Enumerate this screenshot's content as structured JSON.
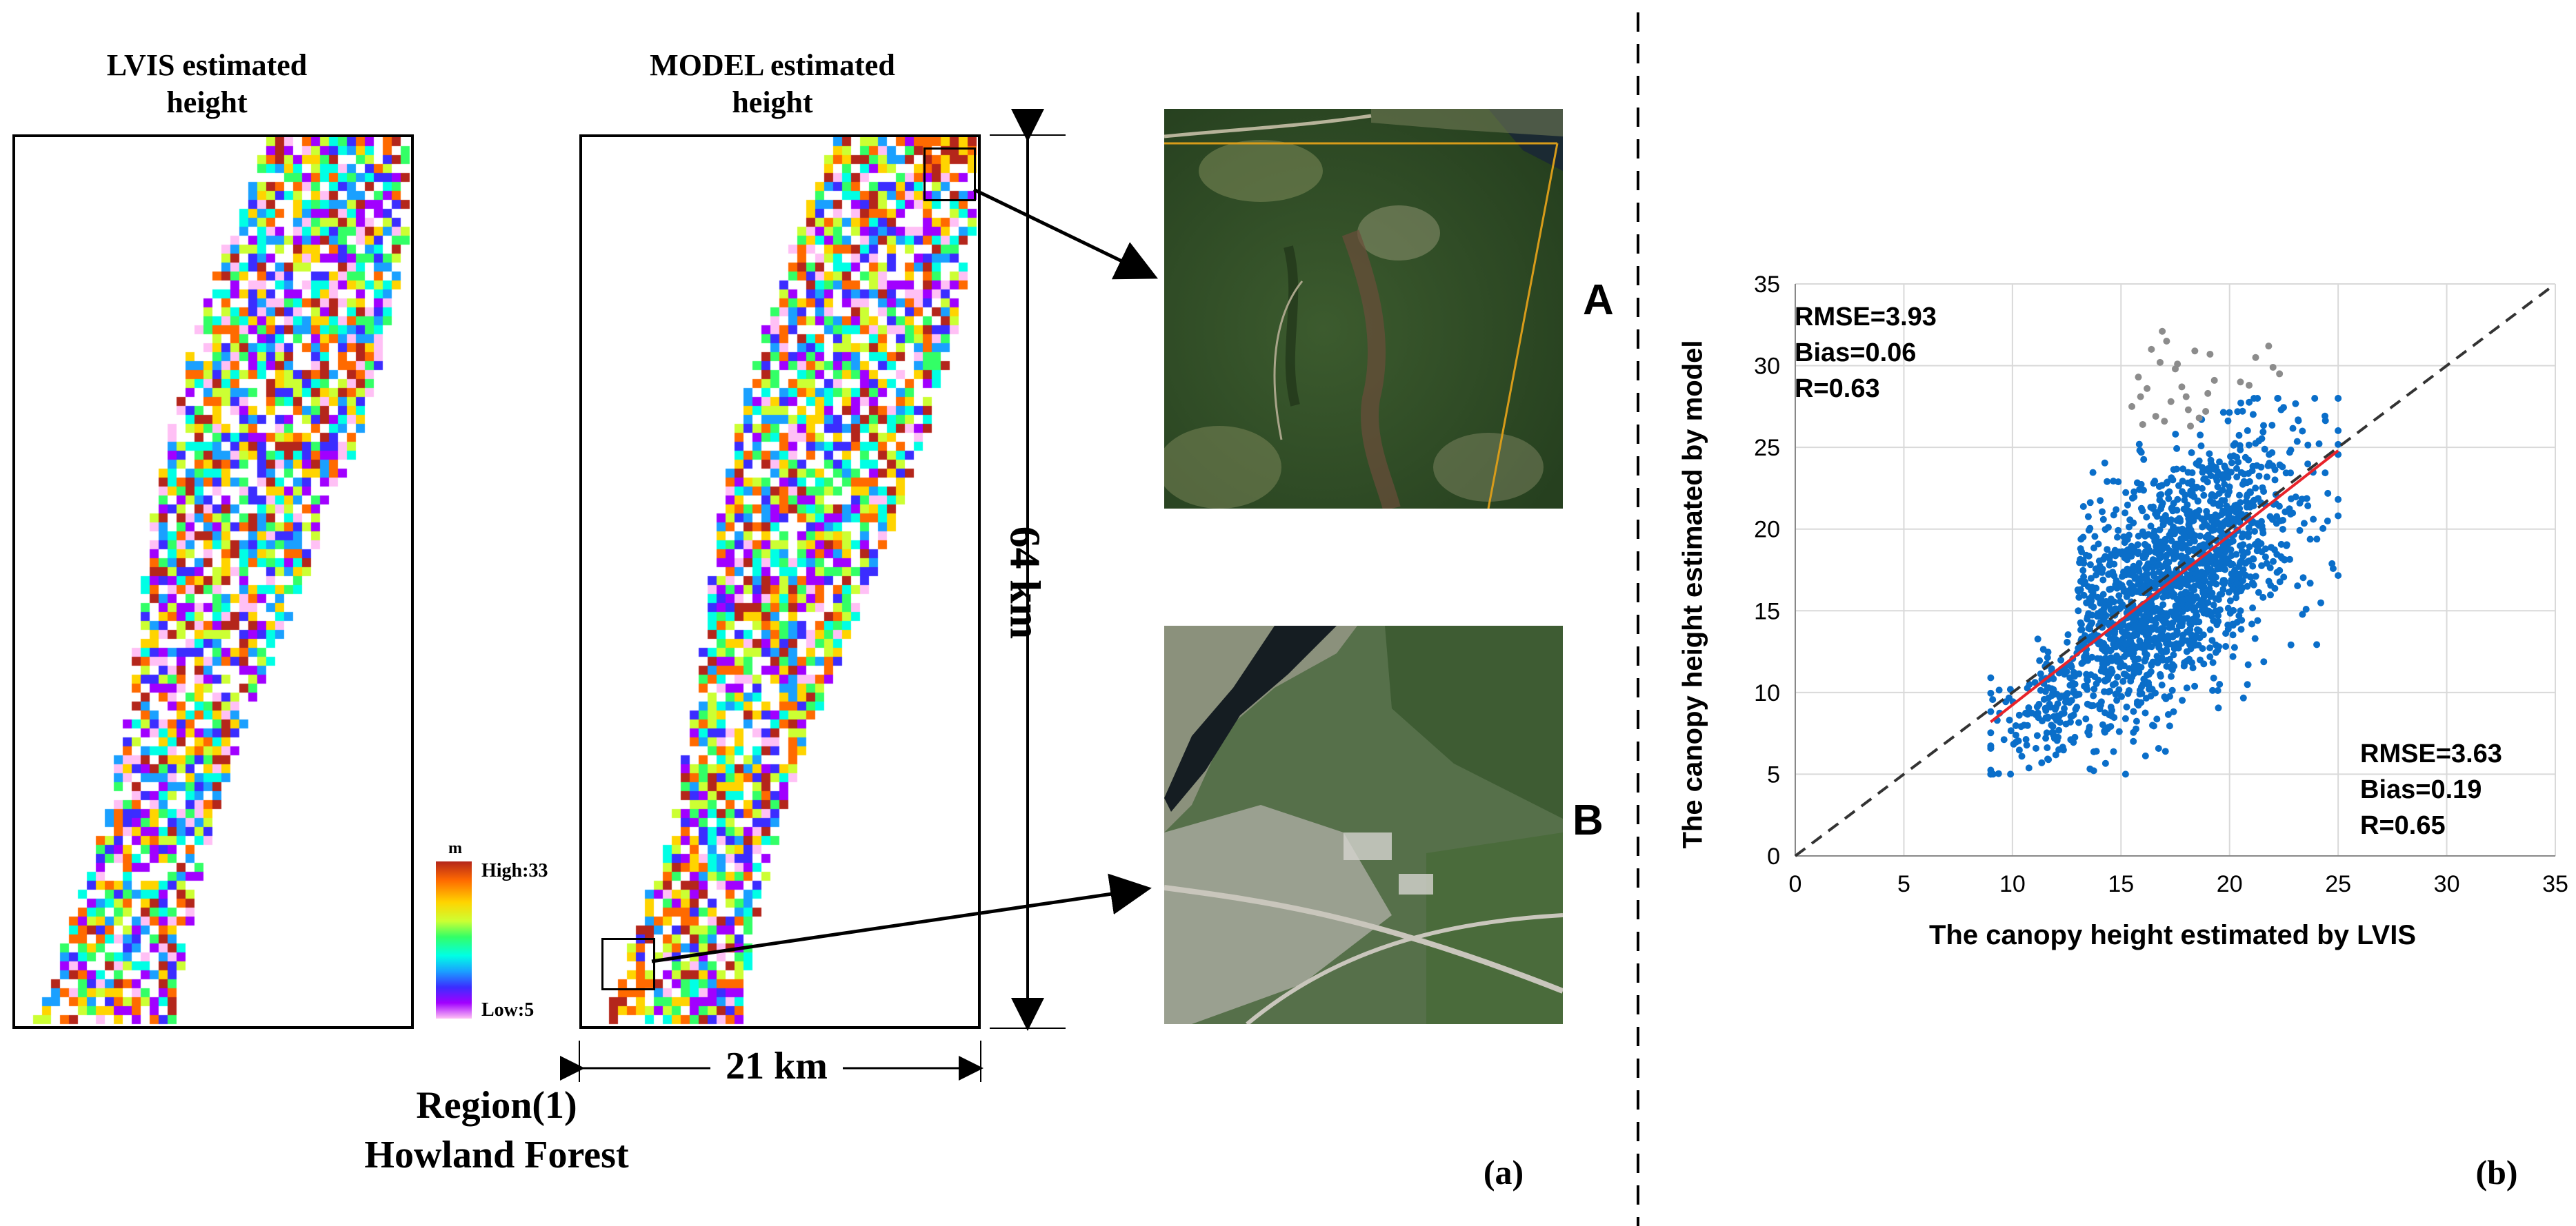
{
  "panel_a": {
    "lvis_title_line1": "LVIS estimated",
    "lvis_title_line2": "height",
    "model_title_line1": "MODEL estimated",
    "model_title_line2": "height",
    "dim_vertical": "64 km",
    "dim_horizontal": "21 km",
    "region_line1": "Region(1)",
    "region_line2": "Howland Forest",
    "panel_label": "(a)",
    "legend": {
      "unit": "m",
      "high": "High:33",
      "low": "Low:5"
    },
    "inset_a_label": "A",
    "inset_b_label": "B"
  },
  "panel_b": {
    "panel_label": "(b)"
  },
  "colors": {
    "scatter_point": "#0a6ec9",
    "outlier_point": "#8c8c8c",
    "fit_line": "#e8232a",
    "reference_line": "#333333"
  },
  "chart_data": {
    "type": "scatter",
    "xlabel": "The canopy height estimated by LVIS",
    "ylabel": "The canopy height estimated by model",
    "xlim": [
      0,
      35
    ],
    "ylim": [
      0,
      35
    ],
    "xticks": [
      "0",
      "5",
      "10",
      "15",
      "20",
      "25",
      "30",
      "35"
    ],
    "yticks": [
      "0",
      "5",
      "10",
      "15",
      "20",
      "25",
      "30",
      "35"
    ],
    "grid": true,
    "annotations": [
      {
        "position": "top-left",
        "lines": [
          "RMSE=3.93",
          "Bias=0.06",
          "R=0.63"
        ]
      },
      {
        "position": "bottom-right",
        "lines": [
          "RMSE=3.63",
          "Bias=0.19",
          "R=0.65"
        ]
      }
    ],
    "reference_line": {
      "style": "dashed",
      "x": [
        0,
        35
      ],
      "y": [
        0,
        35
      ]
    },
    "fit_line": {
      "style": "solid",
      "x": [
        9,
        25
      ],
      "y": [
        8.2,
        24.8
      ]
    },
    "outliers": {
      "x": [
        15.5,
        16.2,
        16.8,
        17.1,
        17.5,
        18.0,
        18.4,
        18.9,
        19.3,
        16.0,
        16.6,
        17.3,
        18.2,
        15.8,
        17.8,
        18.6,
        21.2,
        21.8,
        22.3,
        20.9,
        22.0,
        16.9,
        17.6,
        19.0,
        15.9,
        16.4,
        18.1,
        17.0,
        19.1,
        20.5
      ],
      "y": [
        27.5,
        28.6,
        30.2,
        31.5,
        29.8,
        28.1,
        30.9,
        27.2,
        29.1,
        26.4,
        26.9,
        27.8,
        26.3,
        29.3,
        28.7,
        26.8,
        30.5,
        31.2,
        29.5,
        28.8,
        29.9,
        32.1,
        30.1,
        28.3,
        28.1,
        31.0,
        27.3,
        26.6,
        30.7,
        29.0
      ]
    },
    "series_density": {
      "note_points": "main cluster of LVIS vs model canopy heights",
      "x_range": [
        9,
        25
      ],
      "y_range": [
        5,
        28
      ]
    }
  }
}
